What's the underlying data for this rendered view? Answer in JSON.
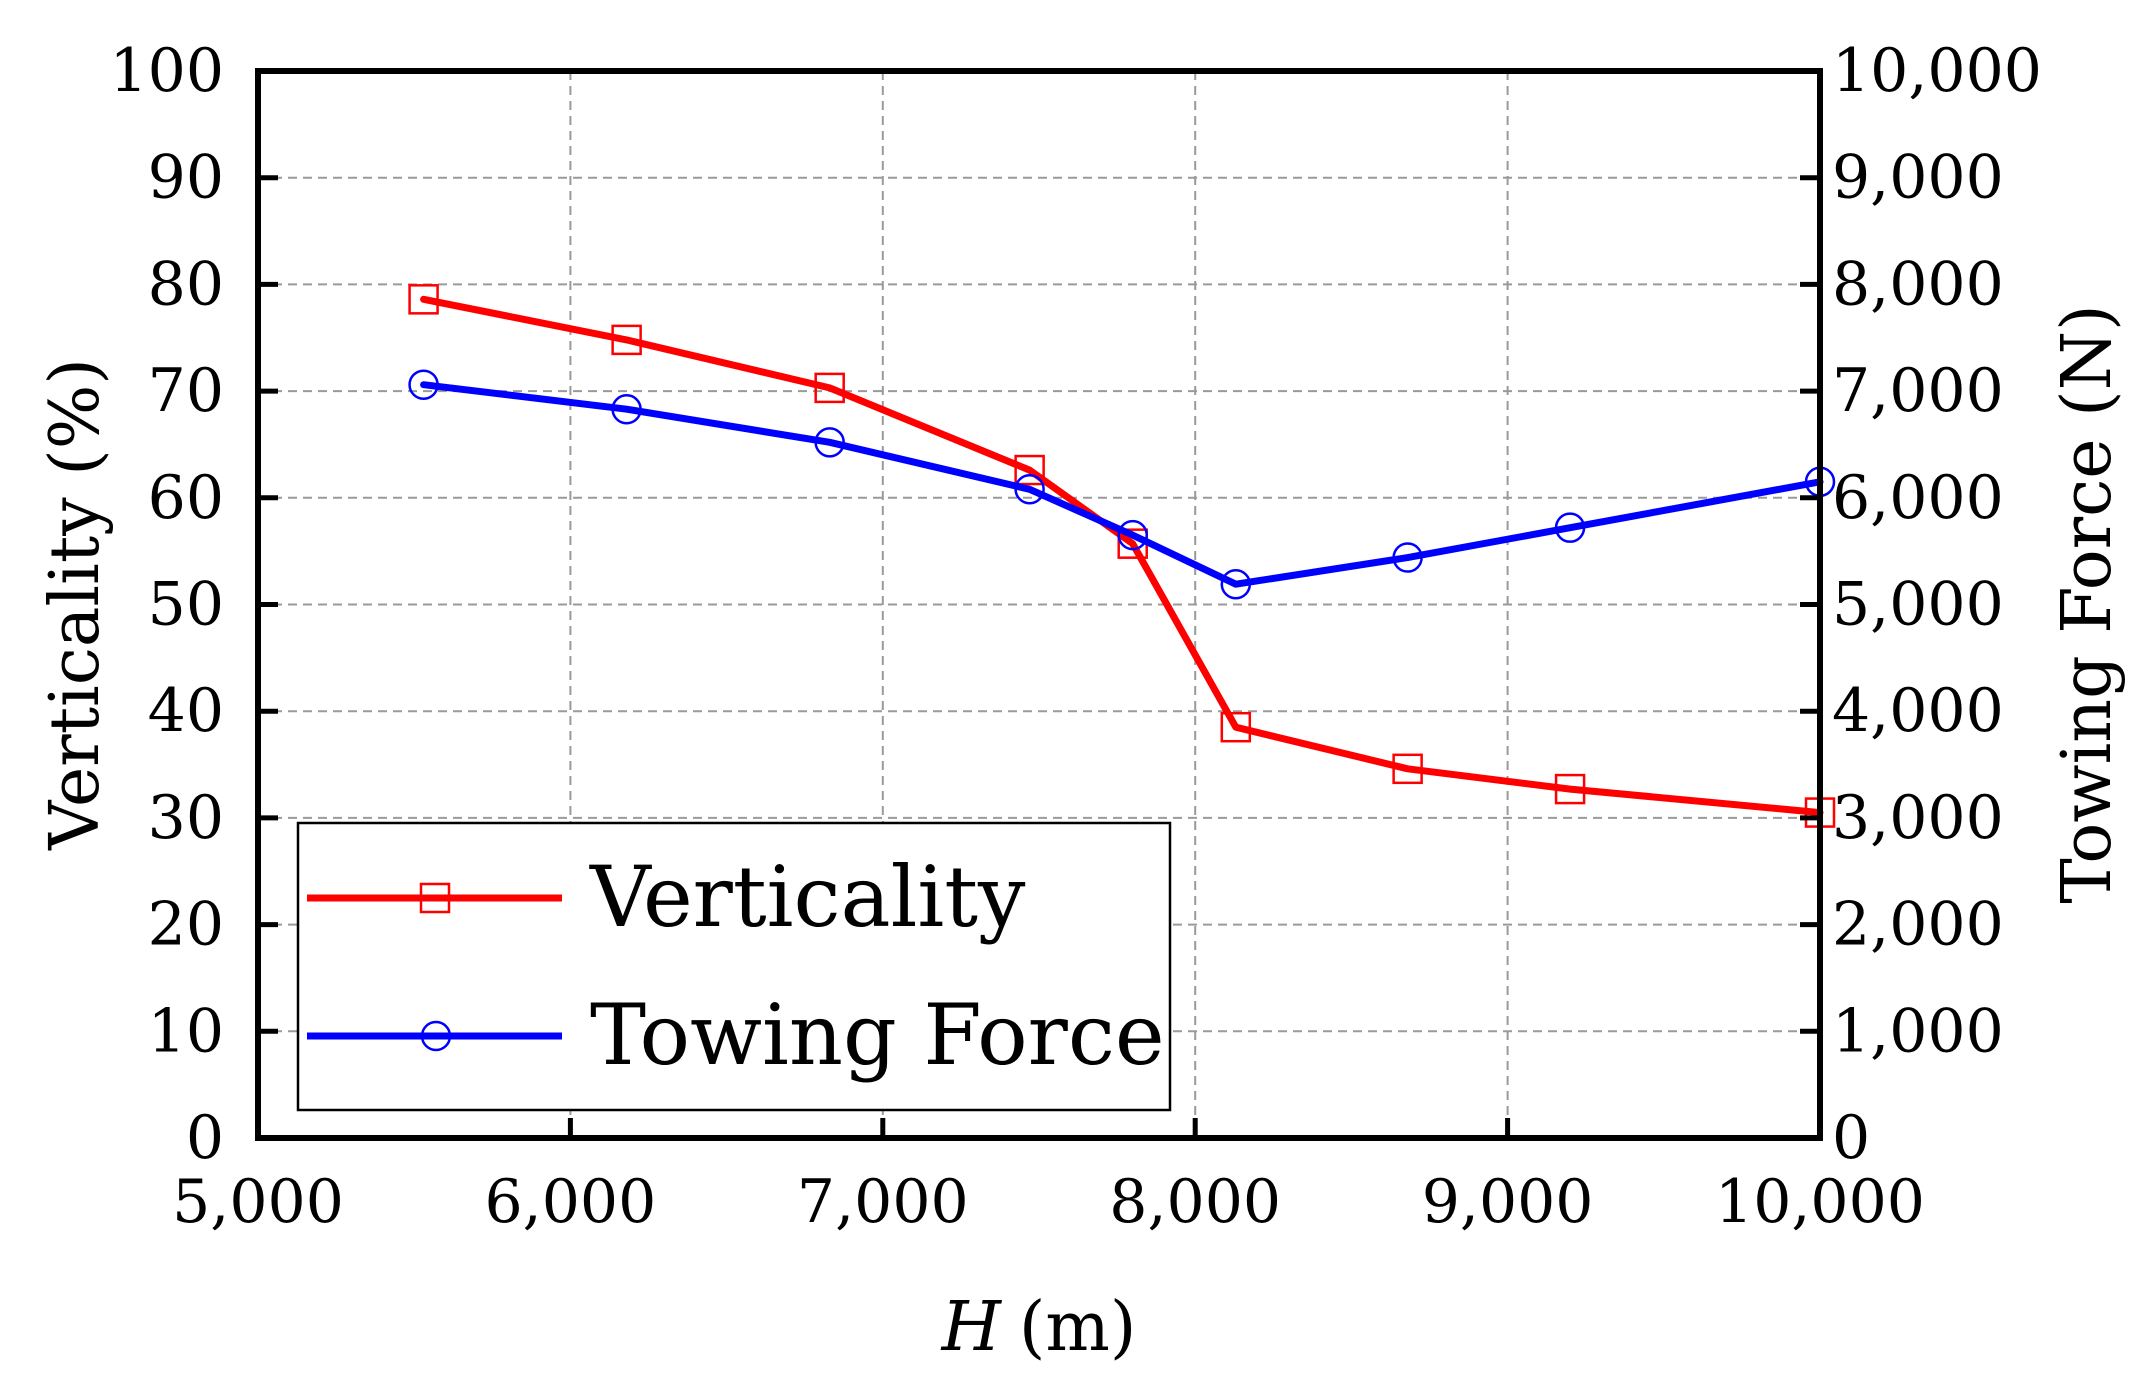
{
  "chart_data": {
    "type": "line",
    "x_axis": {
      "label_var": "H",
      "label_unit": "(m)",
      "min": 5000,
      "max": 10000,
      "ticks": [
        5000,
        6000,
        7000,
        8000,
        9000,
        10000
      ],
      "tick_labels": [
        "5,000",
        "6,000",
        "7,000",
        "8,000",
        "9,000",
        "10,000"
      ]
    },
    "y_left": {
      "label": "Verticality (%)",
      "min": 0,
      "max": 100,
      "ticks": [
        0,
        10,
        20,
        30,
        40,
        50,
        60,
        70,
        80,
        90,
        100
      ],
      "tick_labels": [
        "0",
        "10",
        "20",
        "30",
        "40",
        "50",
        "60",
        "70",
        "80",
        "90",
        "100"
      ]
    },
    "y_right": {
      "label": "Towing Force (N)",
      "min": 0,
      "max": 10000,
      "ticks": [
        0,
        1000,
        2000,
        3000,
        4000,
        5000,
        6000,
        7000,
        8000,
        9000,
        10000
      ],
      "tick_labels": [
        "0",
        "1,000",
        "2,000",
        "3,000",
        "4,000",
        "5,000",
        "6,000",
        "7,000",
        "8,000",
        "9,000",
        "10,000"
      ]
    },
    "grid": true,
    "series": [
      {
        "name": "Verticality",
        "axis": "left",
        "color": "#ff0000",
        "marker": "square",
        "x": [
          5530,
          6180,
          6830,
          7470,
          7800,
          8130,
          8680,
          9200,
          10000
        ],
        "y": [
          78.6,
          74.8,
          70.3,
          62.6,
          55.7,
          38.5,
          34.6,
          32.7,
          30.5
        ]
      },
      {
        "name": "Towing Force",
        "axis": "right",
        "color": "#0000ff",
        "marker": "circle",
        "x": [
          5530,
          6180,
          6830,
          7470,
          7800,
          8130,
          8680,
          9200,
          10000
        ],
        "y": [
          7060,
          6830,
          6520,
          6080,
          5650,
          5190,
          5440,
          5720,
          6150
        ]
      }
    ],
    "legend": {
      "placement": "lower-left",
      "entries": [
        "Verticality",
        "Towing Force"
      ]
    }
  }
}
